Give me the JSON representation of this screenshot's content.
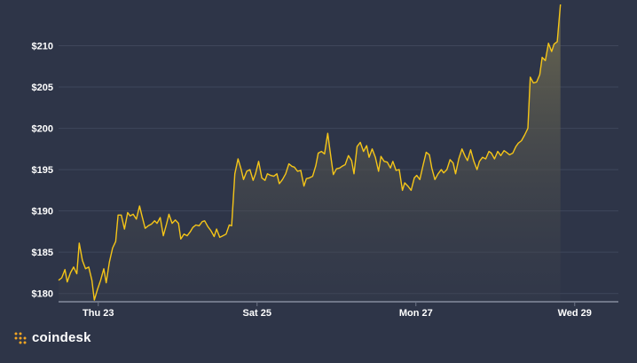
{
  "chart_data": {
    "type": "area",
    "title": "",
    "xlabel": "",
    "ylabel": "",
    "ylim": [
      179,
      215
    ],
    "y_ticks": [
      180,
      185,
      190,
      195,
      200,
      205,
      210
    ],
    "y_tick_labels": [
      "$180",
      "$185",
      "$190",
      "$195",
      "$200",
      "$205",
      "$210"
    ],
    "x_ticks": [
      {
        "label": "Thu 23",
        "x": 0.5
      },
      {
        "label": "Sat 25",
        "x": 2.5
      },
      {
        "label": "Mon 27",
        "x": 4.5
      },
      {
        "label": "Wed 29",
        "x": 6.5
      }
    ],
    "xlim": [
      0,
      7.05
    ],
    "grid": true,
    "legend": "none",
    "series": [
      {
        "points": [
          [
            0.0,
            181.6
          ],
          [
            0.04,
            181.9
          ],
          [
            0.08,
            182.9
          ],
          [
            0.11,
            181.4
          ],
          [
            0.15,
            182.5
          ],
          [
            0.19,
            183.2
          ],
          [
            0.23,
            182.4
          ],
          [
            0.26,
            186.1
          ],
          [
            0.3,
            184.0
          ],
          [
            0.34,
            183.0
          ],
          [
            0.38,
            183.2
          ],
          [
            0.42,
            181.6
          ],
          [
            0.45,
            179.2
          ],
          [
            0.49,
            180.5
          ],
          [
            0.53,
            181.6
          ],
          [
            0.57,
            183.0
          ],
          [
            0.6,
            181.3
          ],
          [
            0.64,
            183.8
          ],
          [
            0.68,
            185.5
          ],
          [
            0.72,
            186.3
          ],
          [
            0.75,
            189.5
          ],
          [
            0.79,
            189.5
          ],
          [
            0.83,
            187.8
          ],
          [
            0.87,
            189.8
          ],
          [
            0.9,
            189.4
          ],
          [
            0.94,
            189.6
          ],
          [
            0.98,
            189.0
          ],
          [
            1.02,
            190.6
          ],
          [
            1.05,
            189.4
          ],
          [
            1.09,
            187.9
          ],
          [
            1.13,
            188.2
          ],
          [
            1.17,
            188.4
          ],
          [
            1.21,
            188.8
          ],
          [
            1.24,
            188.5
          ],
          [
            1.28,
            189.2
          ],
          [
            1.32,
            187.0
          ],
          [
            1.36,
            188.4
          ],
          [
            1.39,
            189.6
          ],
          [
            1.43,
            188.5
          ],
          [
            1.47,
            188.9
          ],
          [
            1.51,
            188.5
          ],
          [
            1.54,
            186.6
          ],
          [
            1.58,
            187.2
          ],
          [
            1.62,
            187.0
          ],
          [
            1.66,
            187.5
          ],
          [
            1.69,
            188.0
          ],
          [
            1.73,
            188.3
          ],
          [
            1.77,
            188.2
          ],
          [
            1.81,
            188.7
          ],
          [
            1.84,
            188.8
          ],
          [
            1.88,
            188.1
          ],
          [
            1.92,
            187.6
          ],
          [
            1.96,
            186.9
          ],
          [
            1.99,
            187.8
          ],
          [
            2.03,
            186.8
          ],
          [
            2.07,
            187.0
          ],
          [
            2.11,
            187.2
          ],
          [
            2.15,
            188.3
          ],
          [
            2.18,
            188.2
          ],
          [
            2.22,
            194.5
          ],
          [
            2.26,
            196.3
          ],
          [
            2.3,
            195.0
          ],
          [
            2.33,
            193.8
          ],
          [
            2.37,
            194.8
          ],
          [
            2.41,
            195.0
          ],
          [
            2.45,
            193.7
          ],
          [
            2.48,
            194.5
          ],
          [
            2.52,
            196.0
          ],
          [
            2.56,
            194.0
          ],
          [
            2.6,
            193.7
          ],
          [
            2.63,
            194.5
          ],
          [
            2.67,
            194.3
          ],
          [
            2.71,
            194.2
          ],
          [
            2.75,
            194.5
          ],
          [
            2.78,
            193.3
          ],
          [
            2.82,
            193.8
          ],
          [
            2.86,
            194.5
          ],
          [
            2.9,
            195.7
          ],
          [
            2.94,
            195.4
          ],
          [
            2.97,
            195.3
          ],
          [
            3.01,
            194.8
          ],
          [
            3.05,
            194.9
          ],
          [
            3.09,
            193.0
          ],
          [
            3.12,
            193.9
          ],
          [
            3.16,
            194.0
          ],
          [
            3.2,
            194.2
          ],
          [
            3.24,
            195.5
          ],
          [
            3.27,
            197.0
          ],
          [
            3.31,
            197.2
          ],
          [
            3.35,
            196.9
          ],
          [
            3.39,
            199.4
          ],
          [
            3.42,
            197.2
          ],
          [
            3.46,
            194.4
          ],
          [
            3.5,
            195.1
          ],
          [
            3.54,
            195.2
          ],
          [
            3.57,
            195.4
          ],
          [
            3.61,
            195.6
          ],
          [
            3.65,
            196.7
          ],
          [
            3.69,
            196.1
          ],
          [
            3.72,
            194.5
          ],
          [
            3.76,
            197.8
          ],
          [
            3.8,
            198.3
          ],
          [
            3.84,
            197.2
          ],
          [
            3.88,
            197.9
          ],
          [
            3.91,
            196.5
          ],
          [
            3.95,
            197.5
          ],
          [
            3.99,
            196.5
          ],
          [
            4.03,
            194.8
          ],
          [
            4.06,
            196.6
          ],
          [
            4.1,
            196.0
          ],
          [
            4.14,
            195.9
          ],
          [
            4.18,
            195.2
          ],
          [
            4.21,
            196.0
          ],
          [
            4.25,
            194.9
          ],
          [
            4.29,
            195.0
          ],
          [
            4.33,
            192.5
          ],
          [
            4.36,
            193.4
          ],
          [
            4.4,
            193.0
          ],
          [
            4.44,
            192.5
          ],
          [
            4.48,
            194.0
          ],
          [
            4.51,
            194.3
          ],
          [
            4.55,
            193.8
          ],
          [
            4.59,
            195.5
          ],
          [
            4.63,
            197.1
          ],
          [
            4.67,
            196.8
          ],
          [
            4.7,
            195.2
          ],
          [
            4.74,
            193.8
          ],
          [
            4.78,
            194.5
          ],
          [
            4.82,
            195.0
          ],
          [
            4.85,
            194.6
          ],
          [
            4.89,
            195.0
          ],
          [
            4.93,
            196.2
          ],
          [
            4.97,
            195.8
          ],
          [
            5.0,
            194.5
          ],
          [
            5.04,
            196.3
          ],
          [
            5.08,
            197.5
          ],
          [
            5.12,
            196.6
          ],
          [
            5.15,
            196.1
          ],
          [
            5.19,
            197.4
          ],
          [
            5.23,
            196.0
          ],
          [
            5.27,
            195.0
          ],
          [
            5.3,
            196.0
          ],
          [
            5.34,
            196.5
          ],
          [
            5.38,
            196.3
          ],
          [
            5.42,
            197.2
          ],
          [
            5.45,
            197.0
          ],
          [
            5.49,
            196.3
          ],
          [
            5.53,
            197.2
          ],
          [
            5.57,
            196.7
          ],
          [
            5.61,
            197.3
          ],
          [
            5.64,
            197.1
          ],
          [
            5.68,
            196.8
          ],
          [
            5.72,
            197.0
          ],
          [
            5.76,
            197.8
          ],
          [
            5.79,
            198.2
          ],
          [
            5.83,
            198.5
          ],
          [
            5.87,
            199.2
          ],
          [
            5.91,
            200.0
          ],
          [
            5.94,
            206.2
          ],
          [
            5.98,
            205.5
          ],
          [
            6.02,
            205.6
          ],
          [
            6.06,
            206.5
          ],
          [
            6.09,
            208.6
          ],
          [
            6.13,
            208.2
          ],
          [
            6.17,
            210.3
          ],
          [
            6.21,
            209.3
          ],
          [
            6.24,
            210.2
          ],
          [
            6.28,
            210.5
          ],
          [
            6.32,
            215.0
          ]
        ]
      }
    ]
  },
  "brand": {
    "name": "coindesk"
  },
  "colors": {
    "background": "#2e3548",
    "line": "#f5c518",
    "fill": "#5f5d4c",
    "grid": "#3f475b",
    "axis": "#6f7688"
  }
}
